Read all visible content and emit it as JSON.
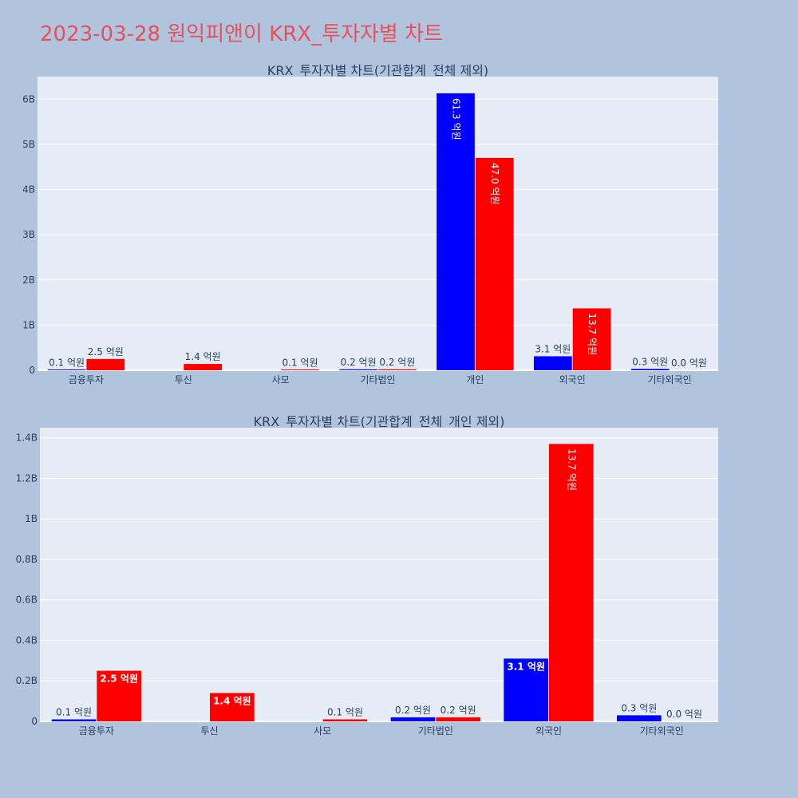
{
  "page": {
    "title": "2023-03-28 원익피앤이 KRX_투자자별 차트"
  },
  "colors": {
    "background": "#b0c4de",
    "plot_bg": "#e5ecf6",
    "buy": "#0000ff",
    "sell": "#ff0000",
    "title": "#e8505b"
  },
  "chart_data": [
    {
      "type": "bar",
      "title": "KRX_투자자별 차트(기관합계_전체 제외)",
      "categories": [
        "금융투자",
        "투신",
        "사모",
        "기타법인",
        "개인",
        "외국인",
        "기타외국인"
      ],
      "series": [
        {
          "values": [
            10000000,
            0,
            0,
            20000000,
            6130000000,
            310000000,
            30000000
          ],
          "labels": [
            "0.1 억원",
            "",
            "",
            "0.2 억원",
            "61.3 억원",
            "3.1 억원",
            "0.3 억원"
          ]
        },
        {
          "values": [
            250000000,
            140000000,
            10000000,
            20000000,
            4700000000,
            1370000000,
            0
          ],
          "labels": [
            "2.5 억원",
            "1.4 억원",
            "0.1 억원",
            "0.2 억원",
            "47.0 억원",
            "13.7 억원",
            "0.0 억원"
          ]
        }
      ],
      "yticks": [
        "0",
        "1B",
        "2B",
        "3B",
        "4B",
        "5B",
        "6B"
      ],
      "ylim": [
        0,
        6500000000
      ],
      "grid": true
    },
    {
      "type": "bar",
      "title": "KRX_투자자별 차트(기관합계_전체_개인 제외)",
      "categories": [
        "금융투자",
        "투신",
        "사모",
        "기타법인",
        "외국인",
        "기타외국인"
      ],
      "series": [
        {
          "values": [
            10000000,
            0,
            0,
            20000000,
            310000000,
            30000000
          ],
          "labels": [
            "0.1 억원",
            "",
            "",
            "0.2 억원",
            "3.1 억원",
            "0.3 억원"
          ]
        },
        {
          "values": [
            250000000,
            140000000,
            10000000,
            20000000,
            1370000000,
            0
          ],
          "labels": [
            "2.5 억원",
            "1.4 억원",
            "0.1 억원",
            "0.2 억원",
            "13.7 억원",
            "0.0 억원"
          ]
        }
      ],
      "yticks": [
        "0",
        "0.2B",
        "0.4B",
        "0.6B",
        "0.8B",
        "1B",
        "1.2B",
        "1.4B"
      ],
      "ylim": [
        0,
        1450000000
      ],
      "grid": true
    }
  ]
}
